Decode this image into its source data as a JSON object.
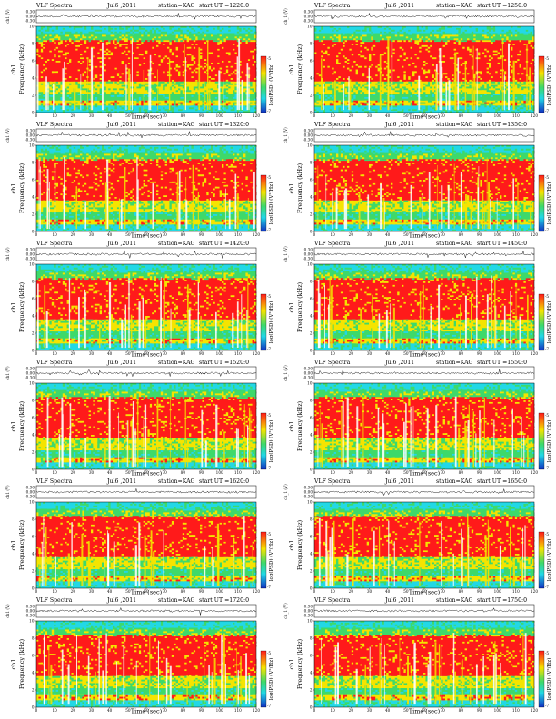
{
  "chart_data": {
    "type": "heatmap",
    "header": {
      "label": "VLF Spectra",
      "date": "Jul6 ,2011",
      "station": "station=KAG",
      "start_label": "start  UT  ="
    },
    "labels": {
      "ch1_axis": "ch1 (V)",
      "ch1_axis_alt": "ch_1 (V)",
      "freq_axis_a": "ch1",
      "freq_axis_b": "Frequency  (kHz)",
      "xlabel": "Time  (sec)",
      "colorbar": "log(PSD) (V²/Hz)"
    },
    "xlim": [
      0,
      120
    ],
    "xticks": [
      0,
      10,
      20,
      30,
      40,
      50,
      60,
      70,
      80,
      90,
      100,
      110,
      120
    ],
    "ch1_ticks": [
      "0.30",
      "0.00",
      "-0.30"
    ],
    "freq_ylim": [
      0,
      10
    ],
    "freq_yticks": [
      0,
      2,
      4,
      6,
      8,
      10
    ],
    "colorbar_ticks": [
      "-5",
      "-7"
    ],
    "panels": [
      {
        "start_time": "1220:0"
      },
      {
        "start_time": "1250:0"
      },
      {
        "start_time": "1320:0"
      },
      {
        "start_time": "1350:0"
      },
      {
        "start_time": "1420:0"
      },
      {
        "start_time": "1450:0"
      },
      {
        "start_time": "1520:0"
      },
      {
        "start_time": "1550:0"
      },
      {
        "start_time": "1620:0"
      },
      {
        "start_time": "1650:0"
      },
      {
        "start_time": "1720:0"
      },
      {
        "start_time": "1750:0"
      }
    ],
    "spectral_bands_khz": [
      {
        "from": 9.2,
        "to": 10.0,
        "level": "cyan"
      },
      {
        "from": 8.4,
        "to": 9.2,
        "level": "green-yellow"
      },
      {
        "from": 3.6,
        "to": 8.4,
        "level": "red"
      },
      {
        "from": 2.2,
        "to": 3.6,
        "level": "yellow-green"
      },
      {
        "from": 1.4,
        "to": 2.2,
        "level": "green"
      },
      {
        "from": 0.8,
        "to": 1.4,
        "level": "yellow"
      },
      {
        "from": 0.0,
        "to": 0.8,
        "level": "cyan-green"
      }
    ],
    "colors": {
      "red": "#ff1a1a",
      "yellow": "#f5e400",
      "green": "#3ed96a",
      "cyan": "#22d8e6",
      "blue": "#1030c0",
      "white": "#ffffff"
    }
  }
}
